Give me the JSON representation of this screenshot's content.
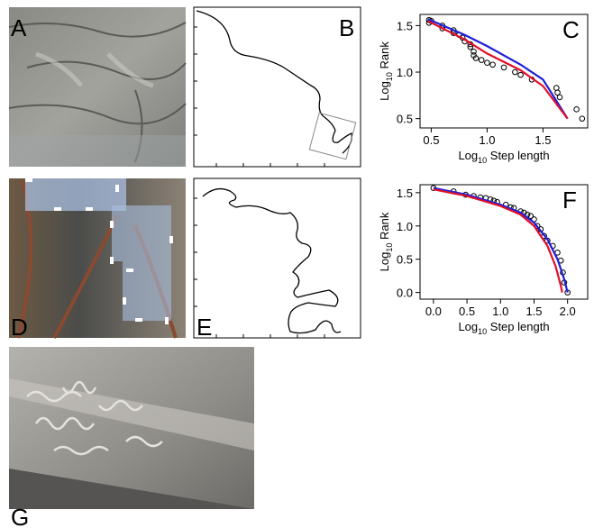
{
  "panel_labels": [
    "A",
    "B",
    "D",
    "E",
    "G"
  ],
  "chart_data": [
    {
      "type": "scatter",
      "panel_label": "C",
      "xlabel": [
        "Log",
        "10",
        " Step length"
      ],
      "ylabel": [
        "Log",
        "10",
        " Rank"
      ],
      "xlim": [
        0.4,
        1.9
      ],
      "ylim": [
        0.4,
        1.62
      ],
      "xticks": [
        0.5,
        {
          "value": 1,
          "label": "1.0"
        },
        1.5
      ],
      "yticks": [
        0.5,
        {
          "value": 1,
          "label": "1.0"
        },
        1.5
      ],
      "series": [
        {
          "style": "markers",
          "color": "#000000",
          "x": [
            0.48,
            0.48,
            0.5,
            0.6,
            0.6,
            0.7,
            0.7,
            0.75,
            0.78,
            0.8,
            0.85,
            0.85,
            0.88,
            0.88,
            0.9,
            0.95,
            1.0,
            1.05,
            1.15,
            1.25,
            1.3,
            1.4,
            1.62,
            1.63,
            1.65,
            1.8,
            1.85
          ],
          "values": [
            1.56,
            1.53,
            1.55,
            1.5,
            1.47,
            1.45,
            1.42,
            1.4,
            1.37,
            1.33,
            1.3,
            1.27,
            1.22,
            1.18,
            1.15,
            1.13,
            1.1,
            1.08,
            1.05,
            1.0,
            0.97,
            0.92,
            0.83,
            0.78,
            0.73,
            0.6,
            0.5
          ]
        },
        {
          "style": "line",
          "color": "#1f1fd6",
          "x": [
            0.47,
            0.8,
            1.0,
            1.3,
            1.5,
            1.72
          ],
          "values": [
            1.57,
            1.4,
            1.28,
            1.08,
            0.92,
            0.5
          ]
        },
        {
          "style": "line",
          "color": "#e0102a",
          "x": [
            0.47,
            0.8,
            1.0,
            1.3,
            1.5,
            1.72
          ],
          "values": [
            1.55,
            1.35,
            1.2,
            1.02,
            0.85,
            0.5
          ]
        }
      ]
    },
    {
      "type": "scatter",
      "panel_label": "F",
      "xlabel": [
        "Log",
        "10",
        " Step length"
      ],
      "ylabel": [
        "Log",
        "10",
        " Rank"
      ],
      "xlim": [
        -0.2,
        2.3
      ],
      "ylim": [
        -0.1,
        1.62
      ],
      "xticks": [
        {
          "value": 0,
          "label": "0.0"
        },
        0.5,
        {
          "value": 1,
          "label": "1.0"
        },
        1.5,
        {
          "value": 2,
          "label": "2.0"
        }
      ],
      "yticks": [
        {
          "value": 0,
          "label": "0.0"
        },
        0.5,
        {
          "value": 1,
          "label": "1.0"
        },
        1.5
      ],
      "series": [
        {
          "style": "markers",
          "color": "#000000",
          "x": [
            0,
            0.3,
            0.48,
            0.6,
            0.7,
            0.78,
            0.85,
            0.9,
            0.95,
            1.08,
            1.15,
            1.2,
            1.3,
            1.35,
            1.4,
            1.45,
            1.5,
            1.55,
            1.6,
            1.65,
            1.7,
            1.78,
            1.85,
            1.9,
            1.93,
            1.95,
            2.0
          ],
          "values": [
            1.57,
            1.52,
            1.47,
            1.45,
            1.43,
            1.42,
            1.4,
            1.38,
            1.36,
            1.32,
            1.28,
            1.27,
            1.22,
            1.2,
            1.17,
            1.15,
            1.1,
            1.0,
            0.95,
            0.85,
            0.78,
            0.7,
            0.6,
            0.48,
            0.3,
            0.15,
            0.0
          ]
        },
        {
          "style": "line",
          "color": "#1f1fd6",
          "x": [
            0,
            0.5,
            1.0,
            1.3,
            1.5,
            1.7,
            1.85,
            1.95,
            2.0
          ],
          "values": [
            1.57,
            1.47,
            1.32,
            1.2,
            1.05,
            0.8,
            0.5,
            0.2,
            0.0
          ]
        },
        {
          "style": "line",
          "color": "#e0102a",
          "x": [
            0,
            0.5,
            1.0,
            1.3,
            1.5,
            1.7,
            1.82,
            1.9,
            1.92
          ],
          "values": [
            1.55,
            1.45,
            1.3,
            1.17,
            1.0,
            0.7,
            0.4,
            0.1,
            0.0
          ]
        }
      ]
    }
  ]
}
